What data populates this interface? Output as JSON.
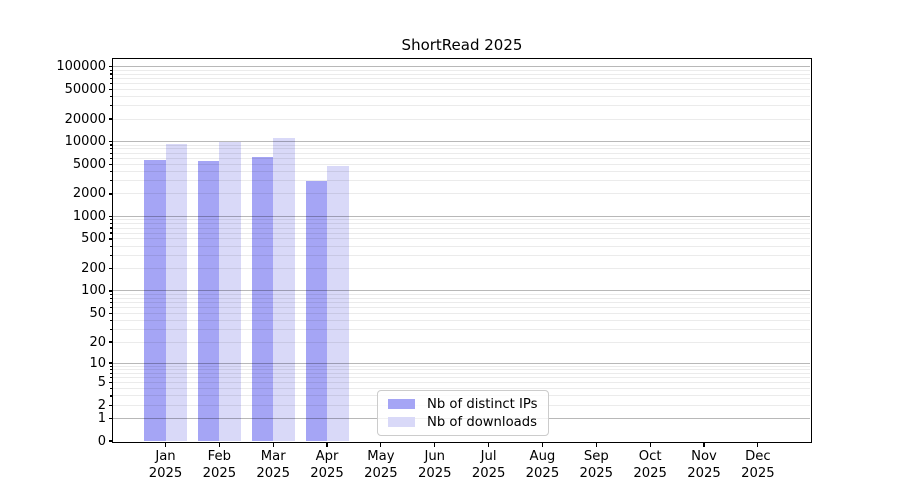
{
  "chart_data": {
    "type": "bar",
    "title": "ShortRead 2025",
    "scale": "log1p",
    "ylim": [
      0,
      127000
    ],
    "grid": "horizontal, major and minor, drawn over bars",
    "legend_position": "lower center",
    "categories": [
      "Jan",
      "Feb",
      "Mar",
      "Apr",
      "May",
      "Jun",
      "Jul",
      "Aug",
      "Sep",
      "Oct",
      "Nov",
      "Dec"
    ],
    "year_label": "2025",
    "y_tick_values": [
      100000,
      50000,
      20000,
      10000,
      5000,
      2000,
      1000,
      500,
      200,
      100,
      50,
      20,
      10,
      5,
      2,
      1,
      0
    ],
    "series": [
      {
        "name": "Nb of distinct IPs",
        "color": "#a5a5f5",
        "values": [
          5600,
          5500,
          6300,
          3000,
          0,
          0,
          0,
          0,
          0,
          0,
          0,
          0
        ]
      },
      {
        "name": "Nb of downloads",
        "color": "#d9d9f8",
        "values": [
          9200,
          9900,
          11200,
          4700,
          0,
          0,
          0,
          0,
          0,
          0,
          0,
          0
        ]
      }
    ],
    "colors": {
      "background": "#ffffff",
      "spine": "#000000",
      "major_grid": "rgba(0,0,0,0.28)",
      "minor_grid": "rgba(0,0,0,0.08)",
      "text": "#000000"
    }
  }
}
